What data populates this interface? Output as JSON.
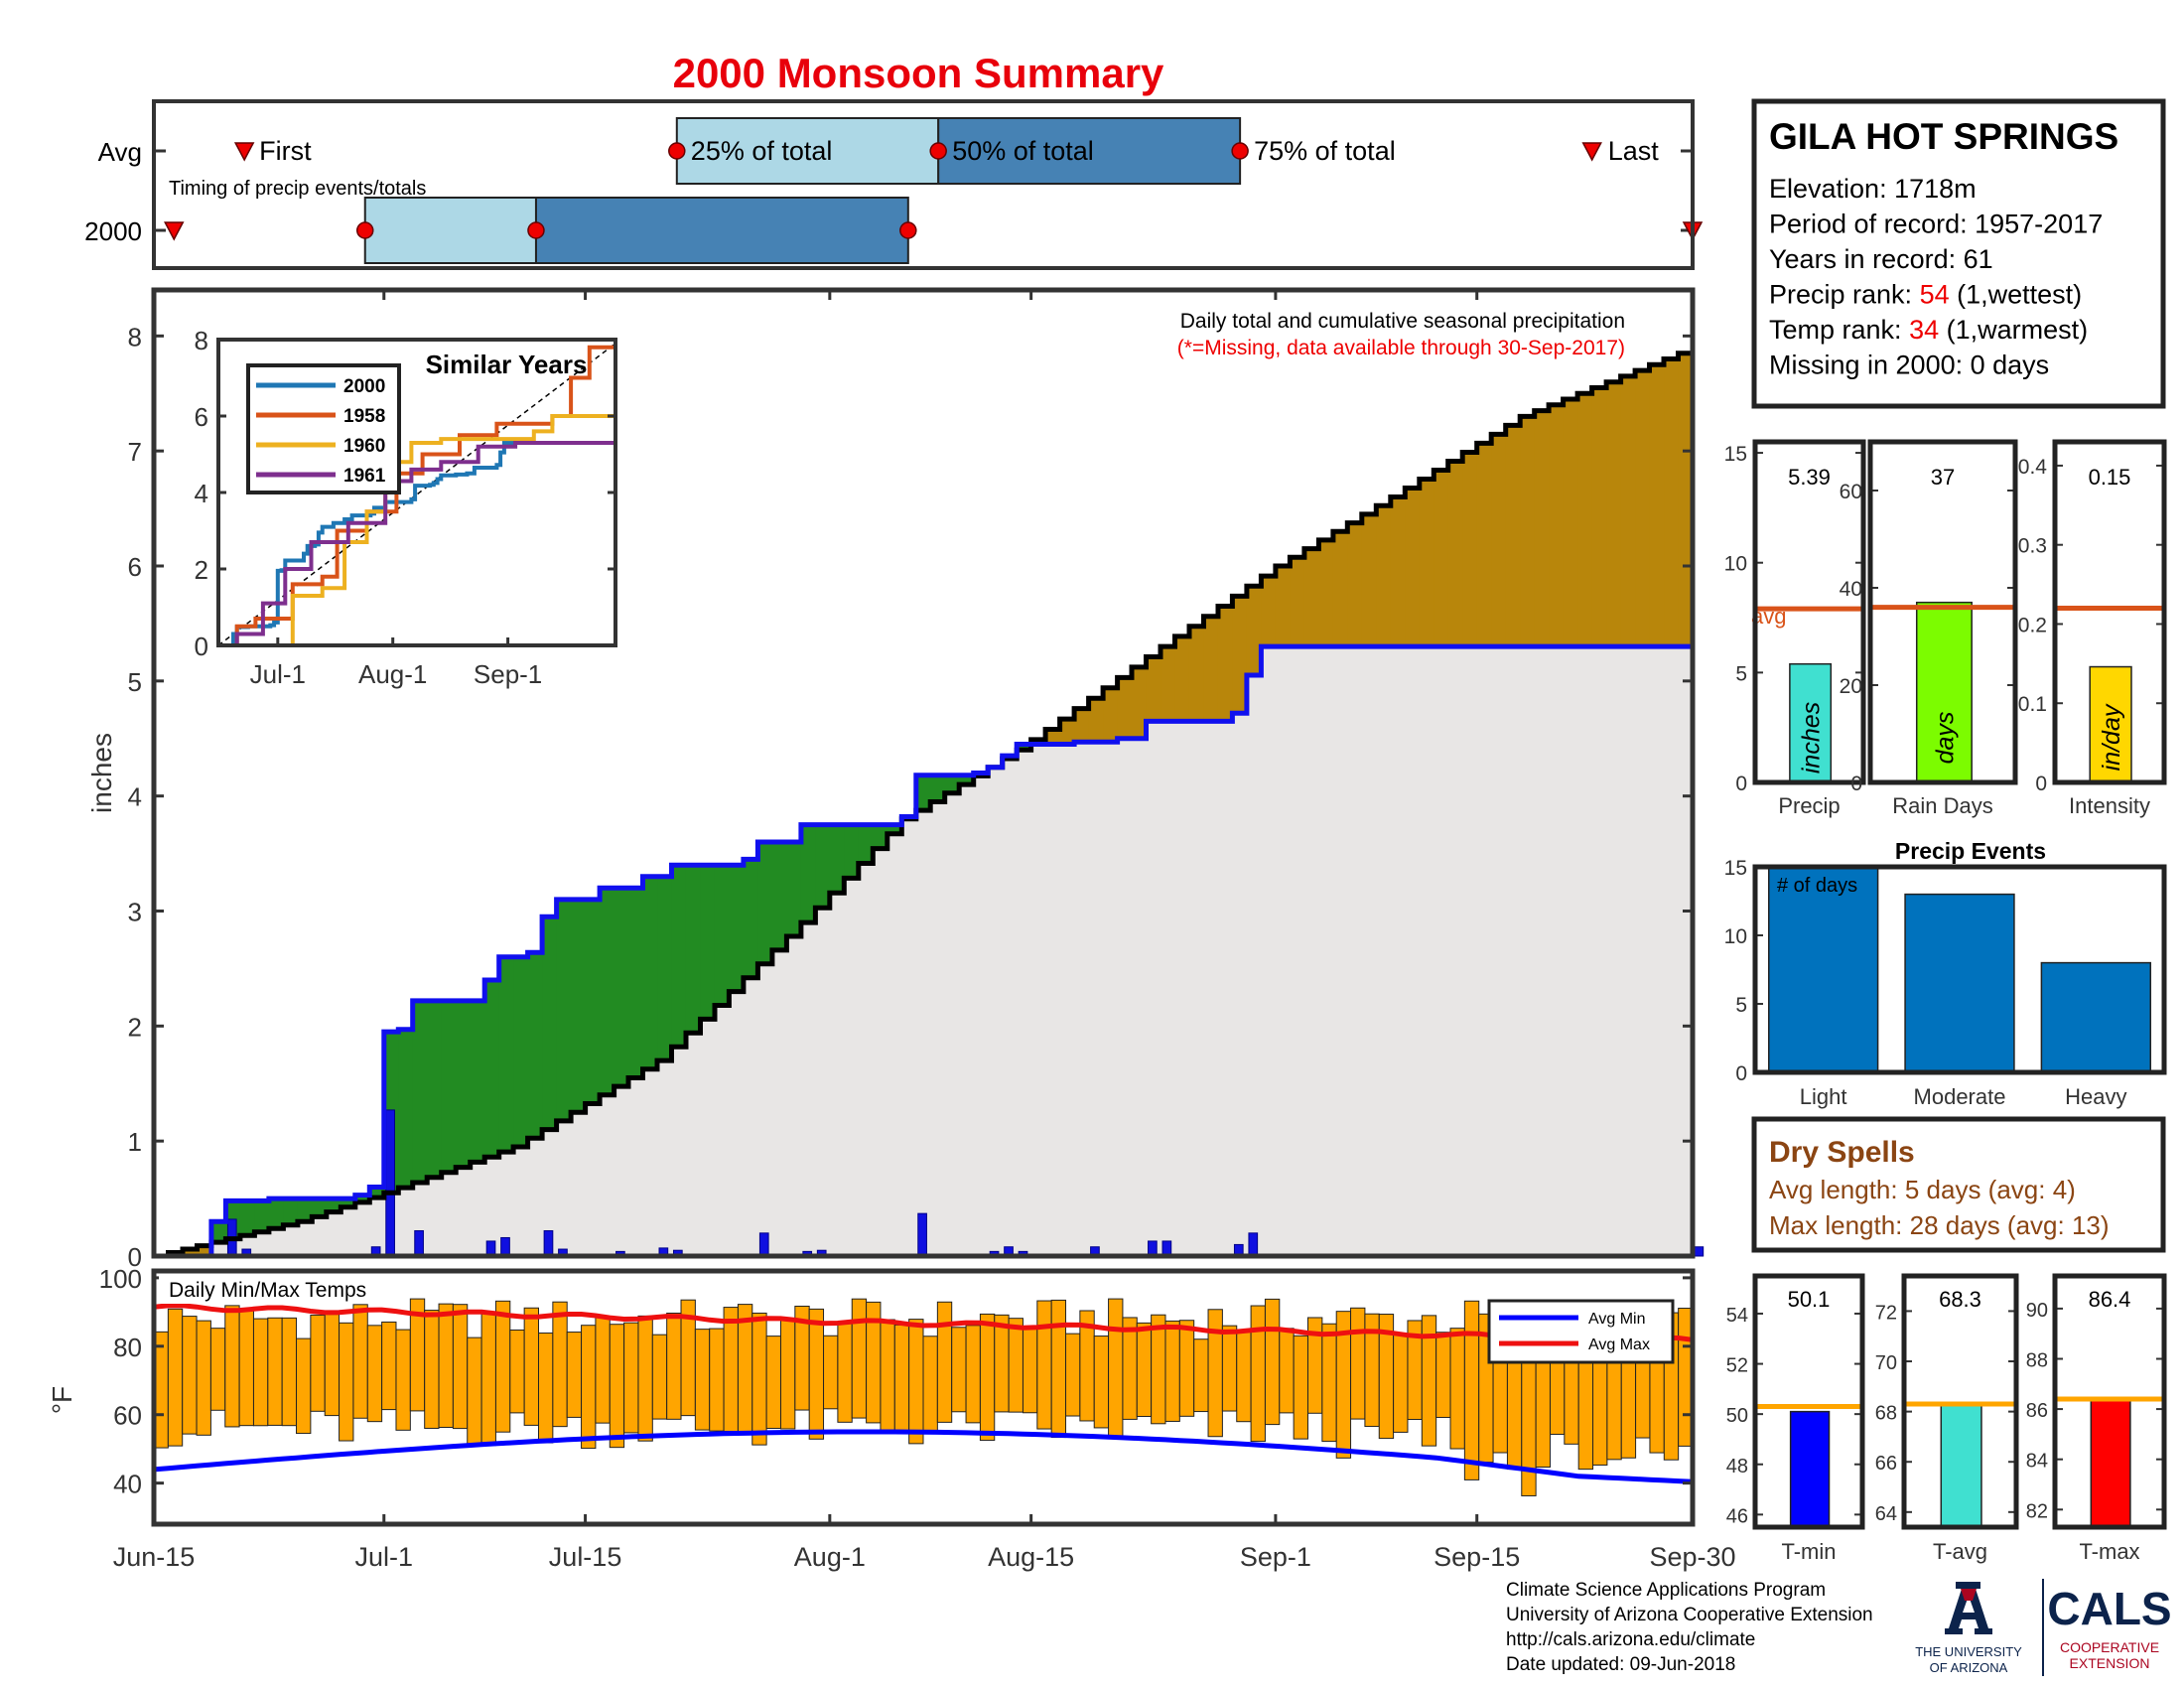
{
  "title": "2000 Monsoon Summary",
  "station": {
    "name": "GILA HOT SPRINGS",
    "lines": [
      {
        "label": "Elevation: 1718m"
      },
      {
        "label": "Period of record: 1957-2017"
      },
      {
        "label": "Years in record: 61"
      },
      {
        "label": "Precip rank: ",
        "value": "54",
        "suffix": " (1,wettest)"
      },
      {
        "label": "Temp rank: ",
        "value": "34",
        "suffix": " (1,warmest)"
      },
      {
        "label": "Missing in 2000: 0 days"
      }
    ]
  },
  "timing": {
    "row_labels": [
      "Avg",
      "2000"
    ],
    "caption": "Timing of precip events/totals",
    "labels": {
      "first": "First",
      "p25": "25% of total",
      "p50": "50% of total",
      "p75": "75% of total",
      "last": "Last"
    },
    "avg": {
      "first": 9,
      "p25": 52,
      "p50": 78,
      "p75": 108,
      "last": 143
    },
    "year": {
      "first": 2,
      "p25": 21,
      "p50": 38,
      "p75": 75,
      "last": 153
    }
  },
  "main_chart": {
    "caption": "Daily total and cumulative seasonal precipitation",
    "missing_note": "(*=Missing, data available through 30-Sep-2017)",
    "ylabel": "inches",
    "yticks": [
      "0",
      "1",
      "2",
      "3",
      "4",
      "5",
      "6",
      "7",
      "8"
    ],
    "xticks": [
      {
        "day": 0,
        "label": "Jun-15"
      },
      {
        "day": 16,
        "label": "Jul-1"
      },
      {
        "day": 30,
        "label": "Jul-15"
      },
      {
        "day": 47,
        "label": "Aug-1"
      },
      {
        "day": 61,
        "label": "Aug-15"
      },
      {
        "day": 78,
        "label": "Sep-1"
      },
      {
        "day": 92,
        "label": "Sep-15"
      },
      {
        "day": 107,
        "label": "Sep-30"
      }
    ]
  },
  "inset": {
    "title": "Similar Years",
    "xticks": [
      {
        "day": 16,
        "label": "Jul-1"
      },
      {
        "day": 47,
        "label": "Aug-1"
      },
      {
        "day": 78,
        "label": "Sep-1"
      }
    ],
    "yticks": [
      "0",
      "2",
      "4",
      "6",
      "8"
    ],
    "series": [
      {
        "name": "2000",
        "color": "#1f77b4",
        "final": 5.39
      },
      {
        "name": "1958",
        "color": "#d95319",
        "final": 8.0
      },
      {
        "name": "1960",
        "color": "#edb120",
        "final": 6.1
      },
      {
        "name": "1961",
        "color": "#7e2f8e",
        "final": 5.5
      }
    ]
  },
  "bars_top": [
    {
      "id": "precip",
      "value_label": "5.39",
      "bar_label": "inches",
      "xlabel": "Precip",
      "color": "#40e0d0",
      "value": 5.39,
      "avg": 7.9,
      "avg_label": "avg",
      "ymax": 15.5,
      "yticks": [
        "0",
        "5",
        "10",
        "15"
      ]
    },
    {
      "id": "days",
      "value_label": "37",
      "bar_label": "days",
      "xlabel": "Rain Days",
      "color": "#7cfc00",
      "value": 37,
      "avg": 36,
      "ymax": 70,
      "yticks": [
        "0",
        "20",
        "40",
        "60"
      ]
    },
    {
      "id": "intensity",
      "value_label": "0.15",
      "bar_label": "in/day",
      "xlabel": "Intensity",
      "color": "#ffd700",
      "value": 0.146,
      "avg": 0.22,
      "ymax": 0.43,
      "yticks": [
        "0",
        "0.1",
        "0.2",
        "0.3",
        "0.4"
      ]
    }
  ],
  "events": {
    "title": "Precip Events",
    "note": "# of days",
    "categories": [
      "Light",
      "Moderate",
      "Heavy"
    ],
    "values": [
      15,
      13,
      8
    ],
    "yticks": [
      "0",
      "5",
      "10",
      "15"
    ]
  },
  "dry_spells": {
    "title": "Dry Spells",
    "lines": [
      "Avg length: 5 days (avg: 4)",
      "Max length: 28 days (avg: 13)"
    ]
  },
  "temps": {
    "caption": "Daily Min/Max Temps",
    "ylabel": "°F",
    "yticks": [
      "40",
      "60",
      "80",
      "100"
    ],
    "legend": [
      "Avg Min",
      "Avg Max"
    ]
  },
  "temp_bars": [
    {
      "value_label": "50.1",
      "xlabel": "T-min",
      "color": "#0000ff",
      "value": 50.1,
      "avg": 50.3,
      "ymin": 45.5,
      "ymax": 55.5,
      "yticks": [
        "46",
        "48",
        "50",
        "52",
        "54"
      ]
    },
    {
      "value_label": "68.3",
      "xlabel": "T-avg",
      "color": "#40e0d0",
      "value": 68.3,
      "avg": 68.3,
      "ymin": 63.4,
      "ymax": 73.4,
      "yticks": [
        "64",
        "66",
        "68",
        "70",
        "72"
      ]
    },
    {
      "value_label": "86.4",
      "xlabel": "T-max",
      "color": "#ff0000",
      "value": 86.4,
      "avg": 86.4,
      "ymin": 81.3,
      "ymax": 91.3,
      "yticks": [
        "82",
        "84",
        "86",
        "88",
        "90"
      ]
    }
  ],
  "footer": [
    "Climate Science Applications Program",
    "University of Arizona Cooperative Extension",
    "http://cals.arizona.edu/climate",
    " Date updated: 09-Jun-2018"
  ],
  "logo": {
    "univ1": "THE UNIVERSITY",
    "univ2": "OF ARIZONA",
    "cals": "CALS",
    "coop1": "COOPERATIVE",
    "coop2": "EXTENSION"
  },
  "colors": {
    "title": "#e8000b",
    "wetter": "#228b22",
    "drier": "#b8860b",
    "blue": "#0000ff",
    "orange": "#ffa500",
    "dry_spells": "#8b4513",
    "box_light": "#add8e6",
    "box_dark": "#4682b4"
  },
  "chart_data": {
    "type": "area",
    "title": "2000 Monsoon Summary",
    "ylabel": "inches",
    "ylim": [
      0,
      8.4
    ],
    "xlim_days": [
      0,
      107
    ],
    "x_start_label": "Jun-15",
    "cumulative_2000": [
      [
        0,
        0
      ],
      [
        4,
        0.3
      ],
      [
        5,
        0.48
      ],
      [
        8,
        0.5
      ],
      [
        14,
        0.53
      ],
      [
        15,
        0.6
      ],
      [
        16,
        1.95
      ],
      [
        17,
        1.97
      ],
      [
        18,
        2.22
      ],
      [
        22,
        2.22
      ],
      [
        23,
        2.4
      ],
      [
        24,
        2.6
      ],
      [
        26,
        2.64
      ],
      [
        27,
        2.95
      ],
      [
        28,
        3.1
      ],
      [
        31,
        3.2
      ],
      [
        34,
        3.3
      ],
      [
        36,
        3.4
      ],
      [
        41,
        3.45
      ],
      [
        42,
        3.6
      ],
      [
        45,
        3.75
      ],
      [
        52,
        3.82
      ],
      [
        53,
        4.18
      ],
      [
        57,
        4.2
      ],
      [
        58,
        4.25
      ],
      [
        59,
        4.35
      ],
      [
        60,
        4.45
      ],
      [
        64,
        4.47
      ],
      [
        67,
        4.5
      ],
      [
        69,
        4.65
      ],
      [
        75,
        4.72
      ],
      [
        76,
        5.05
      ],
      [
        77,
        5.3
      ],
      [
        106,
        5.3
      ],
      [
        107,
        5.39
      ]
    ],
    "cumulative_avg": [
      [
        0,
        0
      ],
      [
        10,
        0.3
      ],
      [
        16,
        0.55
      ],
      [
        25,
        0.95
      ],
      [
        35,
        1.7
      ],
      [
        45,
        2.9
      ],
      [
        52,
        3.8
      ],
      [
        60,
        4.4
      ],
      [
        70,
        5.3
      ],
      [
        78,
        6.0
      ],
      [
        86,
        6.6
      ],
      [
        95,
        7.3
      ],
      [
        107,
        7.9
      ]
    ],
    "daily": [
      [
        5,
        0.32
      ],
      [
        6,
        0.06
      ],
      [
        15,
        0.08
      ],
      [
        16,
        1.27
      ],
      [
        18,
        0.22
      ],
      [
        23,
        0.13
      ],
      [
        24,
        0.16
      ],
      [
        27,
        0.22
      ],
      [
        28,
        0.06
      ],
      [
        32,
        0.04
      ],
      [
        35,
        0.07
      ],
      [
        36,
        0.05
      ],
      [
        42,
        0.2
      ],
      [
        45,
        0.04
      ],
      [
        46,
        0.05
      ],
      [
        53,
        0.37
      ],
      [
        58,
        0.04
      ],
      [
        59,
        0.08
      ],
      [
        60,
        0.04
      ],
      [
        65,
        0.08
      ],
      [
        69,
        0.13
      ],
      [
        70,
        0.13
      ],
      [
        75,
        0.1
      ],
      [
        76,
        0.2
      ],
      [
        107,
        0.08
      ]
    ],
    "legend": [
      "2000",
      "1958",
      "1960",
      "1961"
    ]
  }
}
